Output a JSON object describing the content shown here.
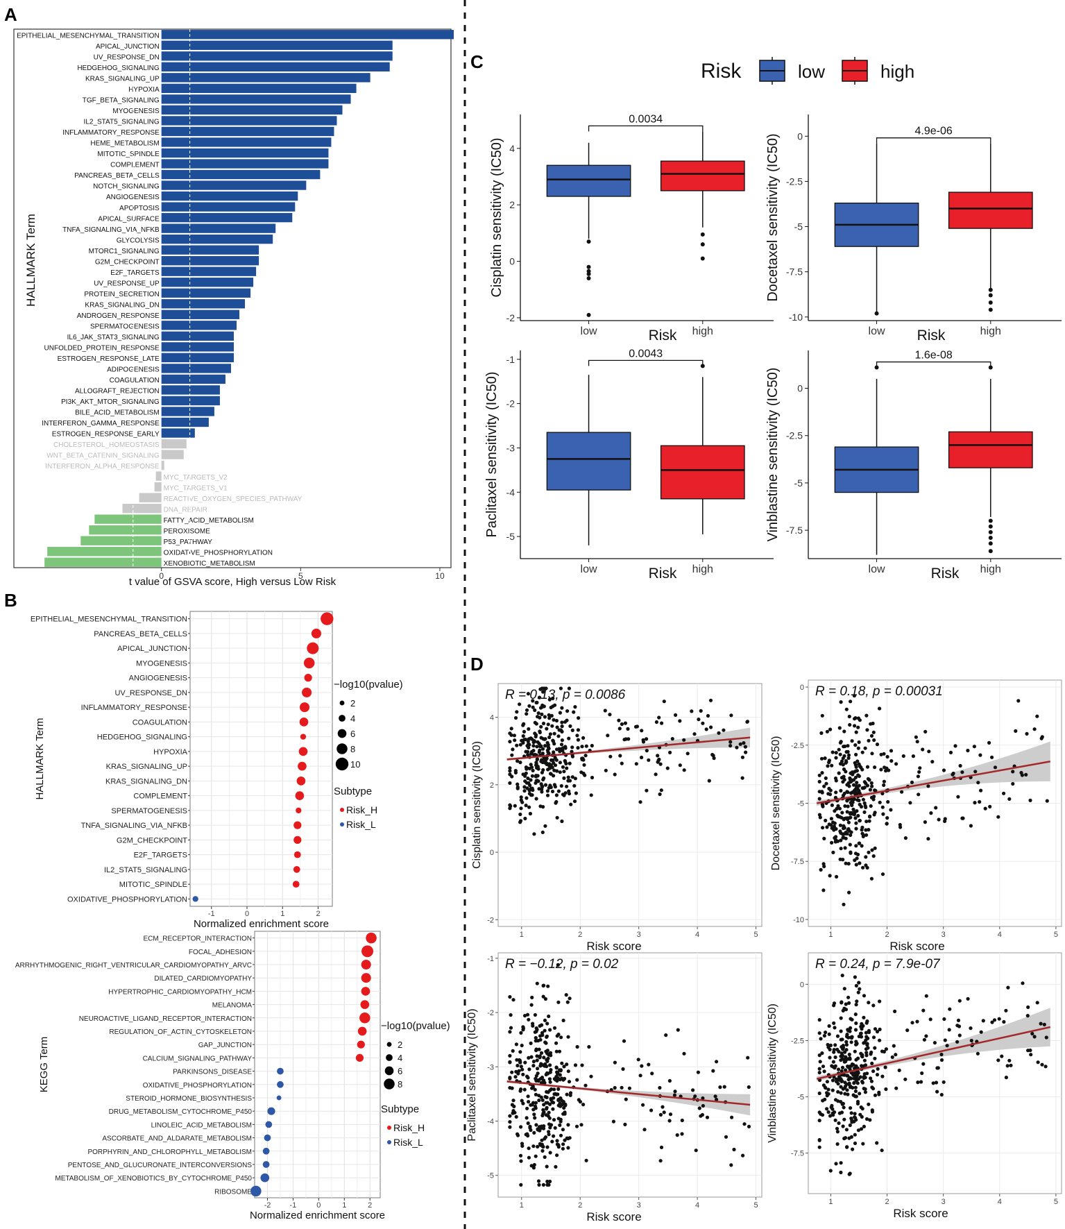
{
  "colors": {
    "navy": "#1f4e99",
    "gray": "#c9c9c9",
    "green": "#7cc57a",
    "red": "#e41a1c",
    "blue": "#2e57a6",
    "box_low": "#3a62b0",
    "box_high": "#e8202a",
    "fit": "#a3282b",
    "band": "#c8c8c8"
  },
  "panels": {
    "A": "A",
    "B": "B",
    "C": "C",
    "D": "D"
  },
  "chart_data": [
    {
      "id": "A",
      "type": "bar",
      "orientation": "horizontal",
      "ylabel": "HALLMARK Term",
      "xlabel": "t value of GSVA score, High versus Low Risk",
      "xlim": [
        -5.3,
        10.4
      ],
      "xticks": [
        0,
        5,
        10
      ],
      "threshold": 1.02,
      "categories": [
        "EPITHELIAL_MESENCHYMAL_TRANSITION",
        "APICAL_JUNCTION",
        "UV_RESPONSE_DN",
        "HEDGEHOG_SIGNALING",
        "KRAS_SIGNALING_UP",
        "HYPOXIA",
        "TGF_BETA_SIGNALING",
        "MYOGENESIS",
        "IL2_STAT5_SIGNALING",
        "INFLAMMATORY_RESPONSE",
        "HEME_METABOLISM",
        "MITOTIC_SPINDLE",
        "COMPLEMENT",
        "PANCREAS_BETA_CELLS",
        "NOTCH_SIGNALING",
        "ANGIOGENESIS",
        "APOPTOSIS",
        "APICAL_SURFACE",
        "TNFA_SIGNALING_VIA_NFKB",
        "GLYCOLYSIS",
        "MTORC1_SIGNALING",
        "G2M_CHECKPOINT",
        "E2F_TARGETS",
        "UV_RESPONSE_UP",
        "PROTEIN_SECRETION",
        "KRAS_SIGNALING_DN",
        "ANDROGEN_RESPONSE",
        "SPERMATOGENESIS",
        "IL6_JAK_STAT3_SIGNALING",
        "UNFOLDED_PROTEIN_RESPONSE",
        "ESTROGEN_RESPONSE_LATE",
        "ADIPOGENESIS",
        "COAGULATION",
        "ALLOGRAFT_REJECTION",
        "PI3K_AKT_MTOR_SIGNALING",
        "BILE_ACID_METABOLISM",
        "INTERFERON_GAMMA_RESPONSE",
        "ESTROGEN_RESPONSE_EARLY",
        "CHOLESTEROL_HOMEOSTASIS",
        "WNT_BETA_CATENIN_SIGNALING",
        "INTERFERON_ALPHA_RESPONSE",
        "MYC_TARGETS_V2",
        "MYC_TARGETS_V1",
        "REACTIVE_OXYGEN_SPECIES_PATHWAY",
        "DNA_REPAIR",
        "FATTY_ACID_METABOLISM",
        "PEROXISOME",
        "P53_PATHWAY",
        "OXIDATIVE_PHOSPHORYLATION",
        "XENOBIOTIC_METABOLISM"
      ],
      "values": [
        10.5,
        8.3,
        8.3,
        8.2,
        7.5,
        7.0,
        6.8,
        6.5,
        6.3,
        6.2,
        6.1,
        6.0,
        6.0,
        5.7,
        5.2,
        4.9,
        4.8,
        4.7,
        4.1,
        4.0,
        3.5,
        3.5,
        3.4,
        3.3,
        3.2,
        3.0,
        2.8,
        2.7,
        2.6,
        2.6,
        2.6,
        2.5,
        2.3,
        2.1,
        2.1,
        1.9,
        1.7,
        1.2,
        0.9,
        0.8,
        0.1,
        -0.2,
        -0.25,
        -0.8,
        -1.4,
        -2.4,
        -2.6,
        -2.9,
        -4.1,
        -4.2
      ]
    },
    {
      "id": "B1",
      "type": "scatter",
      "subtype": "dot",
      "ylabel": "HALLMARK Term",
      "xlabel": "Normalized enrichment score",
      "xlim": [
        -1.6,
        2.4
      ],
      "xticks": [
        -1,
        0,
        1,
        2
      ],
      "size_title": "−log10(pvalue)",
      "size_legend": [
        2,
        4,
        6,
        8,
        10
      ],
      "color_title": "Subtype",
      "groups": [
        "Risk_H",
        "Risk_L"
      ],
      "categories": [
        "EPITHELIAL_MESENCHYMAL_TRANSITION",
        "PANCREAS_BETA_CELLS",
        "APICAL_JUNCTION",
        "MYOGENESIS",
        "ANGIOGENESIS",
        "UV_RESPONSE_DN",
        "INFLAMMATORY_RESPONSE",
        "COAGULATION",
        "HEDGEHOG_SIGNALING",
        "HYPOXIA",
        "KRAS_SIGNALING_UP",
        "KRAS_SIGNALING_DN",
        "COMPLEMENT",
        "SPERMATOGENESIS",
        "TNFA_SIGNALING_VIA_NFKB",
        "G2M_CHECKPOINT",
        "E2F_TARGETS",
        "IL2_STAT5_SIGNALING",
        "MITOTIC_SPINDLE",
        "OXIDATIVE_PHOSPHORYLATION"
      ],
      "nes": [
        2.25,
        1.95,
        1.85,
        1.75,
        1.72,
        1.68,
        1.62,
        1.6,
        1.58,
        1.58,
        1.55,
        1.52,
        1.48,
        1.45,
        1.42,
        1.42,
        1.42,
        1.4,
        1.38,
        -1.45
      ],
      "logp": [
        10,
        7,
        9,
        8,
        5,
        7,
        7,
        6,
        3,
        6,
        6,
        6,
        6,
        3,
        5,
        5,
        4,
        4,
        4,
        3
      ],
      "group": [
        "Risk_H",
        "Risk_H",
        "Risk_H",
        "Risk_H",
        "Risk_H",
        "Risk_H",
        "Risk_H",
        "Risk_H",
        "Risk_H",
        "Risk_H",
        "Risk_H",
        "Risk_H",
        "Risk_H",
        "Risk_H",
        "Risk_H",
        "Risk_H",
        "Risk_H",
        "Risk_H",
        "Risk_H",
        "Risk_L"
      ]
    },
    {
      "id": "B2",
      "type": "scatter",
      "subtype": "dot",
      "ylabel": "KEGG Term",
      "xlabel": "Normalized enrichment score",
      "xlim": [
        -2.5,
        2.4
      ],
      "xticks": [
        -2,
        -1,
        0,
        1,
        2
      ],
      "size_title": "−log10(pvalue)",
      "size_legend": [
        2,
        4,
        6,
        8
      ],
      "color_title": "Subtype",
      "groups": [
        "Risk_H",
        "Risk_L"
      ],
      "categories": [
        "ECM_RECEPTOR_INTERACTION",
        "FOCAL_ADHESION",
        "ARRHYTHMOGENIC_RIGHT_VENTRICULAR_CARDIOMYOPATHY_ARVC",
        "DILATED_CARDIOMYOPATHY",
        "HYPERTROPHIC_CARDIOMYOPATHY_HCM",
        "MELANOMA",
        "NEUROACTIVE_LIGAND_RECEPTOR_INTERACTION",
        "REGULATION_OF_ACTIN_CYTOSKELETON",
        "GAP_JUNCTION",
        "CALCIUM_SIGNALING_PATHWAY",
        "PARKINSONS_DISEASE",
        "OXIDATIVE_PHOSPHORYLATION",
        "STEROID_HORMONE_BIOSYNTHESIS",
        "DRUG_METABOLISM_CYTOCHROME_P450",
        "LINOLEIC_ACID_METABOLISM",
        "ASCORBATE_AND_ALDARATE_METABOLISM",
        "PORPHYRIN_AND_CHLOROPHYLL_METABOLISM",
        "PENTOSE_AND_GLUCURONATE_INTERCONVERSIONS",
        "METABOLISM_OF_XENOBIOTICS_BY_CYTOCHROME_P450",
        "RIBOSOME"
      ],
      "nes": [
        2.05,
        1.9,
        1.85,
        1.85,
        1.83,
        1.8,
        1.8,
        1.7,
        1.65,
        1.6,
        -1.5,
        -1.5,
        -1.55,
        -1.85,
        -1.95,
        -2.0,
        -2.05,
        -2.05,
        -2.1,
        -2.45
      ],
      "logp": [
        8,
        9,
        7,
        7,
        6,
        6,
        8,
        6,
        5,
        5,
        4,
        4,
        2,
        5,
        4,
        4,
        4,
        4,
        6,
        8
      ],
      "group": [
        "Risk_H",
        "Risk_H",
        "Risk_H",
        "Risk_H",
        "Risk_H",
        "Risk_H",
        "Risk_H",
        "Risk_H",
        "Risk_H",
        "Risk_H",
        "Risk_L",
        "Risk_L",
        "Risk_L",
        "Risk_L",
        "Risk_L",
        "Risk_L",
        "Risk_L",
        "Risk_L",
        "Risk_L",
        "Risk_L"
      ]
    },
    {
      "id": "C",
      "type": "box",
      "legend": {
        "title": "Risk",
        "labels": [
          "low",
          "high"
        ]
      },
      "plots": [
        {
          "ylabel": "Cisplatin sensitivity (IC50)",
          "xlabel": "Risk",
          "categories": [
            "low",
            "high"
          ],
          "pvalue": "0.0034",
          "ylim": [
            -2.1,
            5.2
          ],
          "yticks": [
            -2,
            0,
            2,
            4
          ],
          "low": {
            "whislo": 0.8,
            "q1": 2.3,
            "med": 2.9,
            "q3": 3.4,
            "whishi": 4.2,
            "outliers": [
              0.7,
              -0.2,
              -0.35,
              -0.45,
              -0.6,
              -1.9
            ]
          },
          "high": {
            "whislo": 1.2,
            "q1": 2.5,
            "med": 3.1,
            "q3": 3.55,
            "whishi": 4.6,
            "outliers": [
              0.95,
              0.6,
              0.1
            ]
          }
        },
        {
          "ylabel": "Docetaxel sensitivity (IC50)",
          "xlabel": "Risk",
          "categories": [
            "low",
            "high"
          ],
          "pvalue": "4.9e-06",
          "ylim": [
            -10.2,
            1.2
          ],
          "yticks": [
            -10.0,
            -7.5,
            -5.0,
            -2.5,
            0.0
          ],
          "low": {
            "whislo": -9.7,
            "q1": -6.1,
            "med": -4.9,
            "q3": -3.7,
            "whishi": -0.4,
            "outliers": [
              -9.8
            ]
          },
          "high": {
            "whislo": -8.4,
            "q1": -5.1,
            "med": -4.0,
            "q3": -3.1,
            "whishi": -0.4,
            "outliers": [
              -8.5,
              -8.8,
              -9.2,
              -9.6
            ]
          }
        },
        {
          "ylabel": "Paclitaxel sensitivity (IC50)",
          "xlabel": "Risk",
          "categories": [
            "low",
            "high"
          ],
          "pvalue": "0.0043",
          "ylim": [
            -5.5,
            -0.8
          ],
          "yticks": [
            -5,
            -4,
            -3,
            -2,
            -1
          ],
          "low": {
            "whislo": -5.2,
            "q1": -3.95,
            "med": -3.25,
            "q3": -2.65,
            "whishi": -1.35,
            "outliers": []
          },
          "high": {
            "whislo": -4.95,
            "q1": -4.15,
            "med": -3.5,
            "q3": -2.95,
            "whishi": -1.4,
            "outliers": [
              -1.15
            ]
          }
        },
        {
          "ylabel": "Vinblastine sensitivity (IC50)",
          "xlabel": "Risk",
          "categories": [
            "low",
            "high"
          ],
          "pvalue": "1.6e-08",
          "ylim": [
            -9.0,
            2.0
          ],
          "yticks": [
            -7.5,
            -5.0,
            -2.5,
            0.0
          ],
          "low": {
            "whislo": -8.8,
            "q1": -5.5,
            "med": -4.3,
            "q3": -3.1,
            "whishi": 0.5,
            "outliers": [
              1.1
            ]
          },
          "high": {
            "whislo": -6.8,
            "q1": -4.2,
            "med": -3.0,
            "q3": -2.3,
            "whishi": 0.5,
            "outliers": [
              1.1,
              -7.0,
              -7.3,
              -7.6,
              -7.9,
              -8.2,
              -8.6
            ]
          }
        }
      ]
    },
    {
      "id": "D",
      "type": "scatter",
      "subtype": "regression",
      "seed": 7,
      "n_points": 420,
      "plots": [
        {
          "ylabel": "Cisplatin sensitivity (IC50)",
          "xlabel": "Risk score",
          "annotation": "R = 0.13, p = 0.0086",
          "xlim": [
            0.6,
            5.1
          ],
          "ylim": [
            -2.2,
            5.0
          ],
          "xticks": [
            1,
            2,
            3,
            4,
            5
          ],
          "yticks": [
            -2,
            0,
            2,
            4
          ],
          "fit": [
            [
              0.75,
              2.75
            ],
            [
              4.9,
              3.4
            ]
          ],
          "band": 0.12,
          "ymean": 2.8,
          "ysd": 0.9
        },
        {
          "ylabel": "Docetaxel sensitivity (IC50)",
          "xlabel": "Risk score",
          "annotation": "R = 0.18, p = 0.00031",
          "xlim": [
            0.6,
            5.1
          ],
          "ylim": [
            -10.3,
            0.3
          ],
          "xticks": [
            1,
            2,
            3,
            4,
            5
          ],
          "yticks": [
            -10.0,
            -7.5,
            -5.0,
            -2.5,
            0.0
          ],
          "fit": [
            [
              0.75,
              -5.0
            ],
            [
              4.9,
              -3.2
            ]
          ],
          "band": 0.35,
          "ymean": -4.7,
          "ysd": 1.8
        },
        {
          "ylabel": "Paclitaxel sensitivity (IC50)",
          "xlabel": "Risk score",
          "annotation": "R = −0.12, p = 0.02",
          "xlim": [
            0.6,
            5.1
          ],
          "ylim": [
            -5.4,
            -0.9
          ],
          "xticks": [
            1,
            2,
            3,
            4,
            5
          ],
          "yticks": [
            -5,
            -4,
            -3,
            -2,
            -1
          ],
          "fit": [
            [
              0.75,
              -3.27
            ],
            [
              4.9,
              -3.7
            ]
          ],
          "band": 0.08,
          "ymean": -3.3,
          "ysd": 0.8
        },
        {
          "ylabel": "Vinblastine sensitivity (IC50)",
          "xlabel": "Risk score",
          "annotation": "R = 0.24, p = 7.9e-07",
          "xlim": [
            0.6,
            5.1
          ],
          "ylim": [
            -9.3,
            1.4
          ],
          "xticks": [
            1,
            2,
            3,
            4,
            5
          ],
          "yticks": [
            -7.5,
            -5.0,
            -2.5,
            0.0
          ],
          "fit": [
            [
              0.75,
              -4.2
            ],
            [
              4.9,
              -1.9
            ]
          ],
          "band": 0.35,
          "ymean": -3.6,
          "ysd": 1.7
        }
      ]
    }
  ]
}
